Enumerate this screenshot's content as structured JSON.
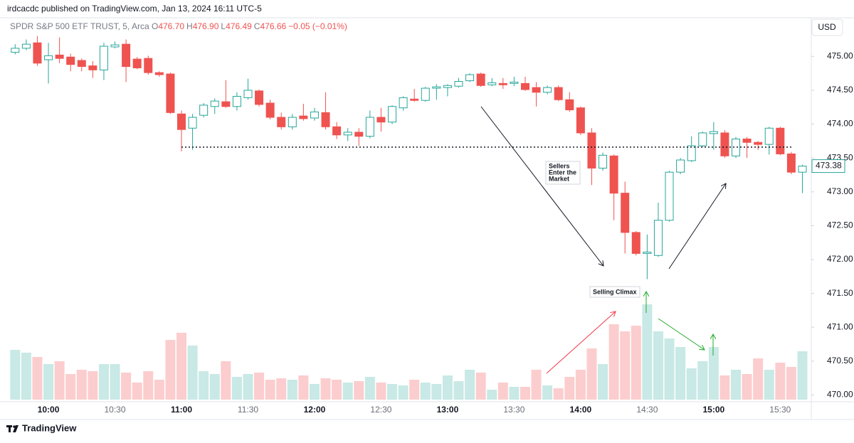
{
  "header": "irdcacdc published on TradingView.com, Jan 13, 2024 16:11 UTC-5",
  "footer": "TradingView",
  "chart_data": {
    "type": "candlestick",
    "symbol": "SPDR S&P 500 ETF TRUST, 5, Arca",
    "ohlc_legend": [
      {
        "key": "O",
        "value": "476.70"
      },
      {
        "key": "H",
        "value": "476.90"
      },
      {
        "key": "L",
        "value": "476.49"
      },
      {
        "key": "C",
        "value": "476.66"
      }
    ],
    "change": "−0.05 (−0.01%)",
    "currency": "USD",
    "categories": [
      null,
      null,
      null,
      "10:00",
      null,
      null,
      null,
      null,
      null,
      "10:30",
      null,
      null,
      null,
      null,
      null,
      "11:00",
      null,
      null,
      null,
      null,
      null,
      "11:30",
      null,
      null,
      null,
      null,
      null,
      "12:00",
      null,
      null,
      null,
      null,
      null,
      "12:30",
      null,
      null,
      null,
      null,
      null,
      "13:00",
      null,
      null,
      null,
      null,
      null,
      "13:30",
      null,
      null,
      null,
      null,
      null,
      "14:00",
      null,
      null,
      null,
      null,
      null,
      "14:30",
      null,
      null,
      null,
      null,
      null,
      "15:00",
      null,
      null,
      null,
      null,
      null,
      "15:30",
      null,
      null
    ],
    "open": [
      475.06,
      475.12,
      475.2,
      474.95,
      475.02,
      474.99,
      474.94,
      474.86,
      474.8,
      475.14,
      475.18,
      474.96,
      474.97,
      474.76,
      474.74,
      474.15,
      473.94,
      474.13,
      474.26,
      474.33,
      474.26,
      474.39,
      474.49,
      474.31,
      474.1,
      473.96,
      474.12,
      474.09,
      474.17,
      473.96,
      473.84,
      473.88,
      473.82,
      474.1,
      474.03,
      474.24,
      474.37,
      474.35,
      474.53,
      474.54,
      474.56,
      474.64,
      474.74,
      474.58,
      474.6,
      474.6,
      474.6,
      474.54,
      474.47,
      474.54,
      474.36,
      474.24,
      473.87,
      473.35,
      473.53,
      472.98,
      472.4,
      472.09,
      472.06,
      472.58,
      473.29,
      473.46,
      473.68,
      473.86,
      473.87,
      473.53,
      473.78,
      473.73,
      473.7,
      473.94,
      473.56,
      473.29
    ],
    "high": [
      475.18,
      475.25,
      475.3,
      475.2,
      475.28,
      475.04,
      474.97,
      474.93,
      475.2,
      475.22,
      475.25,
      474.99,
      475.01,
      474.78,
      474.76,
      474.2,
      474.15,
      474.31,
      474.38,
      474.65,
      474.47,
      474.67,
      474.51,
      474.36,
      474.17,
      474.15,
      474.3,
      474.24,
      474.47,
      474.03,
      473.94,
      473.94,
      474.2,
      474.24,
      474.28,
      474.41,
      474.52,
      474.55,
      474.59,
      474.59,
      474.68,
      474.75,
      474.76,
      474.68,
      474.68,
      474.7,
      474.7,
      474.62,
      474.57,
      474.57,
      474.47,
      474.26,
      473.94,
      473.58,
      473.55,
      473.15,
      472.42,
      472.37,
      472.84,
      473.31,
      473.5,
      473.82,
      473.89,
      474.03,
      473.91,
      473.81,
      473.81,
      473.75,
      473.96,
      473.96,
      473.59,
      473.4
    ],
    "low": [
      475.03,
      475.09,
      474.86,
      474.6,
      474.9,
      474.78,
      474.78,
      474.68,
      474.65,
      475.12,
      474.62,
      474.81,
      474.73,
      474.7,
      474.15,
      473.6,
      473.62,
      474.1,
      474.15,
      474.24,
      474.2,
      474.36,
      474.26,
      474.07,
      473.92,
      473.92,
      474.05,
      474.05,
      473.92,
      473.78,
      473.75,
      473.68,
      473.79,
      473.89,
      474.0,
      474.2,
      474.33,
      474.33,
      474.36,
      474.41,
      474.54,
      474.62,
      474.55,
      474.56,
      474.52,
      474.56,
      474.49,
      474.26,
      474.44,
      474.34,
      474.18,
      473.84,
      473.1,
      473.31,
      472.58,
      472.09,
      472.06,
      471.71,
      472.04,
      472.56,
      473.26,
      473.44,
      473.66,
      473.62,
      473.5,
      473.5,
      473.5,
      473.62,
      473.55,
      473.54,
      473.26,
      472.98
    ],
    "close": [
      475.12,
      475.18,
      474.9,
      475.01,
      474.97,
      474.88,
      474.85,
      474.8,
      475.15,
      475.17,
      474.85,
      474.83,
      474.76,
      474.73,
      474.17,
      473.92,
      474.1,
      474.28,
      474.34,
      474.26,
      474.41,
      474.5,
      474.29,
      474.1,
      473.96,
      474.1,
      474.08,
      474.18,
      473.96,
      473.84,
      473.88,
      473.82,
      474.1,
      474.03,
      474.26,
      474.39,
      474.35,
      474.53,
      474.55,
      474.57,
      474.63,
      474.73,
      474.57,
      474.61,
      474.58,
      474.62,
      474.51,
      474.47,
      474.54,
      474.36,
      474.21,
      473.87,
      473.35,
      473.54,
      472.98,
      472.4,
      472.09,
      472.11,
      472.58,
      473.29,
      473.47,
      473.68,
      473.87,
      473.89,
      473.53,
      473.78,
      473.73,
      473.7,
      473.94,
      473.56,
      473.29,
      473.38
    ],
    "volume": [
      70,
      66,
      60,
      50,
      54,
      36,
      42,
      40,
      50,
      50,
      38,
      24,
      40,
      28,
      84,
      94,
      76,
      40,
      36,
      54,
      32,
      36,
      38,
      28,
      30,
      28,
      34,
      22,
      30,
      28,
      24,
      26,
      32,
      24,
      22,
      20,
      28,
      24,
      22,
      34,
      26,
      42,
      38,
      14,
      24,
      18,
      18,
      42,
      20,
      16,
      32,
      42,
      72,
      50,
      106,
      96,
      104,
      134,
      96,
      86,
      74,
      44,
      54,
      74,
      34,
      42,
      36,
      58,
      42,
      52,
      46,
      68
    ],
    "ylim": [
      469.9,
      475.57
    ],
    "volume_lim": [
      0,
      540
    ],
    "yticks": [
      {
        "value": 470,
        "label": "470.00"
      },
      {
        "value": 470.5,
        "label": "470.50"
      },
      {
        "value": 471,
        "label": "471.00"
      },
      {
        "value": 471.5,
        "label": "471.50"
      },
      {
        "value": 472,
        "label": "472.00"
      },
      {
        "value": 472.5,
        "label": "472.50"
      },
      {
        "value": 473,
        "label": "473.00"
      },
      {
        "value": 473.5,
        "label": "473.50"
      },
      {
        "value": 474,
        "label": "474.00"
      },
      {
        "value": 474.5,
        "label": "474.50"
      },
      {
        "value": 475,
        "label": "475.00"
      }
    ],
    "hline": 473.66,
    "up_color": "#26a69a",
    "down_color": "#ef5350",
    "volume_up_color": "#c8e9e5",
    "volume_down_color": "#fccdce",
    "annotations": [
      {
        "lines": [
          "Sellers",
          "Enter the",
          "Market"
        ]
      },
      {
        "lines": [
          "Selling Climax"
        ]
      }
    ]
  }
}
